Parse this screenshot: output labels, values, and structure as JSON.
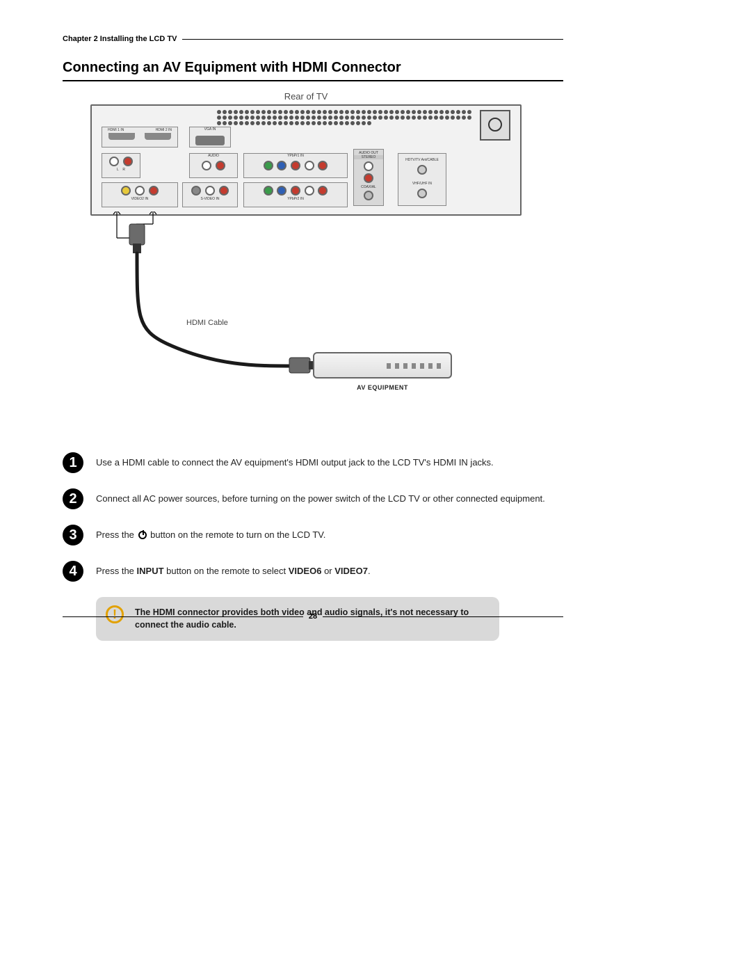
{
  "chapter": "Chapter 2 Installing the LCD TV",
  "heading": "Connecting an AV Equipment with HDMI Connector",
  "diagram": {
    "rear_label": "Rear of TV",
    "hdmi_cable_label": "HDMI Cable",
    "av_equipment_label": "AV EQUIPMENT",
    "ports": {
      "hdmi1": "HDMI 1 IN",
      "hdmi2": "HDMI 2 IN",
      "vga": "VGA IN",
      "audio_out": "AUDIO OUT",
      "stereo": "STEREO",
      "coaxial": "COAXIAL",
      "hdtv": "HDTV/TV Ant/CABLE",
      "vhf": "VHF/UHF IN",
      "video2": "VIDEO2 IN",
      "svideo": "S-VIDEO",
      "svideo_in": "S-VIDEO IN",
      "ypbpr1": "YPbPr1 IN",
      "ypbpr2": "YPbPr2 IN",
      "audio": "AUDIO",
      "L": "L",
      "R": "R",
      "Y": "Y",
      "Pb": "Pb",
      "Pr": "Pr",
      "video": "VIDEO"
    },
    "colors": {
      "rca_default": "#cfcfcf",
      "rca_red": "#c43b2e",
      "rca_white": "#f5f5f5",
      "rca_yellow": "#e7c93a",
      "rca_green": "#3a9b4a",
      "rca_blue": "#2e5fb5",
      "panel_bg": "#f2f2f2",
      "panel_border": "#666666",
      "cable_stroke": "#1a1a1a",
      "plug_fill": "#6b6b6b",
      "note_bg": "#d9d9d9",
      "note_icon": "#e2a100"
    }
  },
  "steps": [
    {
      "n": "1",
      "text_a": "Use a HDMI cable to connect the AV equipment's HDMI output jack to the LCD TV's HDMI IN jacks."
    },
    {
      "n": "2",
      "text_a": "Connect all AC power sources, before turning on the power switch of the LCD TV or other connected equipment."
    },
    {
      "n": "3",
      "text_a": "Press the ",
      "text_b": " button on the remote to turn on the LCD TV.",
      "has_power_icon": true
    },
    {
      "n": "4",
      "text_a": "Press the ",
      "bold1": "INPUT",
      "text_b": " button on the remote to select ",
      "bold2": "VIDEO6",
      "text_c": " or ",
      "bold3": "VIDEO7",
      "text_d": "."
    }
  ],
  "note": "The HDMI connector provides both video and audio signals, it's not necessary to connect the audio cable.",
  "page_number": "28"
}
